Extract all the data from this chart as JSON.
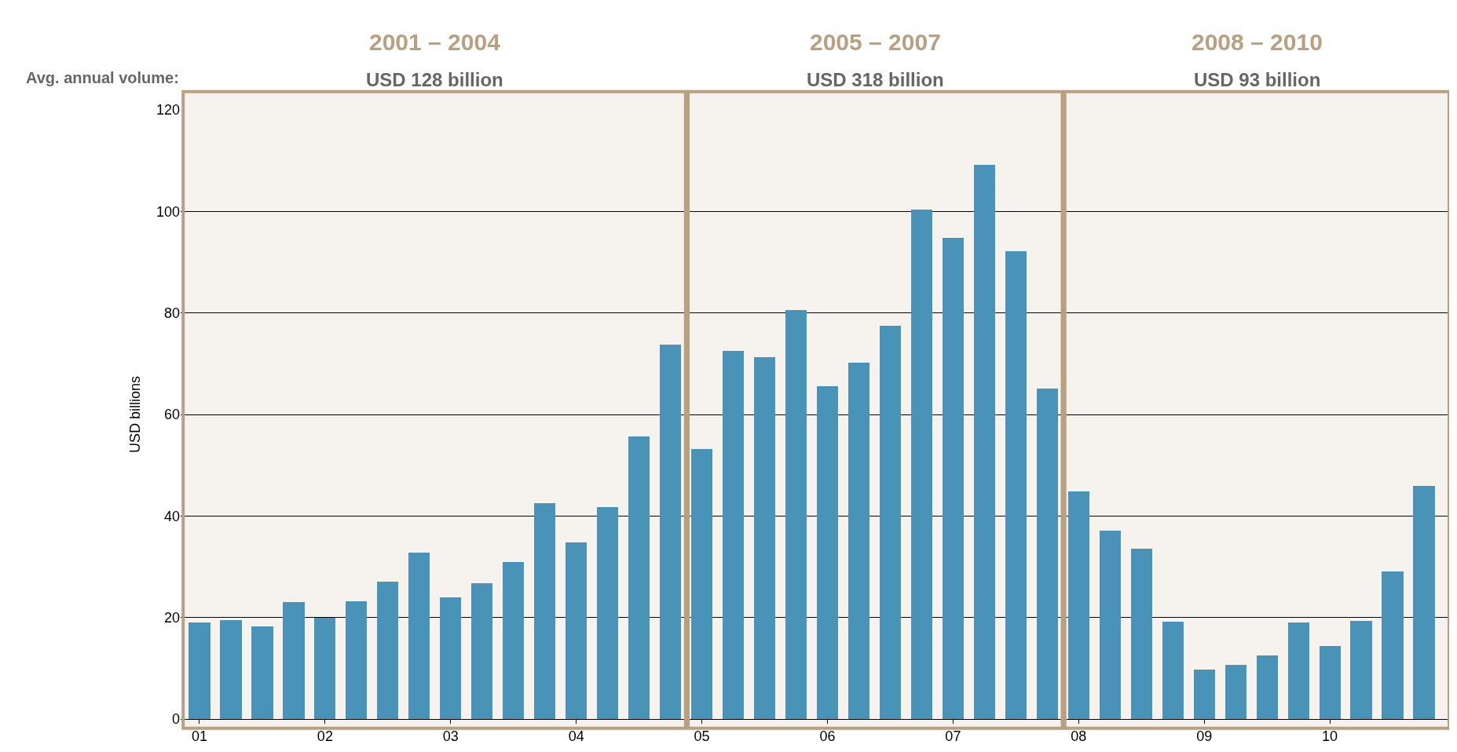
{
  "chart_data": {
    "type": "bar",
    "ylabel": "USD billions",
    "x": [
      2001,
      2001.25,
      2001.5,
      2001.75,
      2002,
      2002.25,
      2002.5,
      2002.75,
      2003,
      2003.25,
      2003.5,
      2003.75,
      2004,
      2004.25,
      2004.5,
      2004.75,
      2005,
      2005.25,
      2005.5,
      2005.75,
      2006,
      2006.25,
      2006.5,
      2006.75,
      2007,
      2007.25,
      2007.5,
      2007.75,
      2008,
      2008.25,
      2008.5,
      2008.75,
      2009,
      2009.25,
      2009.5,
      2009.75,
      2010,
      2010.25,
      2010.5,
      2010.75
    ],
    "values": [
      19,
      19.5,
      18.3,
      23,
      20,
      23.2,
      27,
      32.8,
      24,
      26.8,
      31,
      42.6,
      34.8,
      41.8,
      55.6,
      73.8,
      53.2,
      72.5,
      71.3,
      80.5,
      65.5,
      70.2,
      77.4,
      100.3,
      94.8,
      109.2,
      92.1,
      65.1,
      44.9,
      37.1,
      33.5,
      19.1,
      9.7,
      10.7,
      12.6,
      19,
      14.4,
      19.4,
      29,
      46
    ],
    "color": "#4a93b8",
    "xlim": [
      2000.85,
      2010.95
    ],
    "xticks": [
      {
        "value": 2001,
        "label": "01"
      },
      {
        "value": 2002,
        "label": "02"
      },
      {
        "value": 2003,
        "label": "03"
      },
      {
        "value": 2004,
        "label": "04"
      },
      {
        "value": 2005,
        "label": "05"
      },
      {
        "value": 2006,
        "label": "06"
      },
      {
        "value": 2007,
        "label": "07"
      },
      {
        "value": 2008,
        "label": "08"
      },
      {
        "value": 2009,
        "label": "09"
      },
      {
        "value": 2010,
        "label": "10"
      }
    ],
    "ylim": [
      0,
      120
    ],
    "yticks": [
      0,
      20,
      40,
      60,
      80,
      100,
      120
    ],
    "grid": "y",
    "bands": [
      {
        "axis": "x",
        "from": 2000.87,
        "to": 2004.87,
        "label": "2001 – 2004",
        "color": "#b9a081"
      },
      {
        "axis": "x",
        "from": 2004.89,
        "to": 2007.87,
        "label": "2005 – 2007",
        "color": "#b9a081"
      },
      {
        "axis": "x",
        "from": 2007.89,
        "to": 2010.95,
        "label": "2008 – 2010",
        "color": "#b9a081"
      }
    ],
    "annotations": [
      "Avg. annual volume:",
      "USD 128 billion",
      "USD 318 billion",
      "USD 93 billion"
    ]
  }
}
